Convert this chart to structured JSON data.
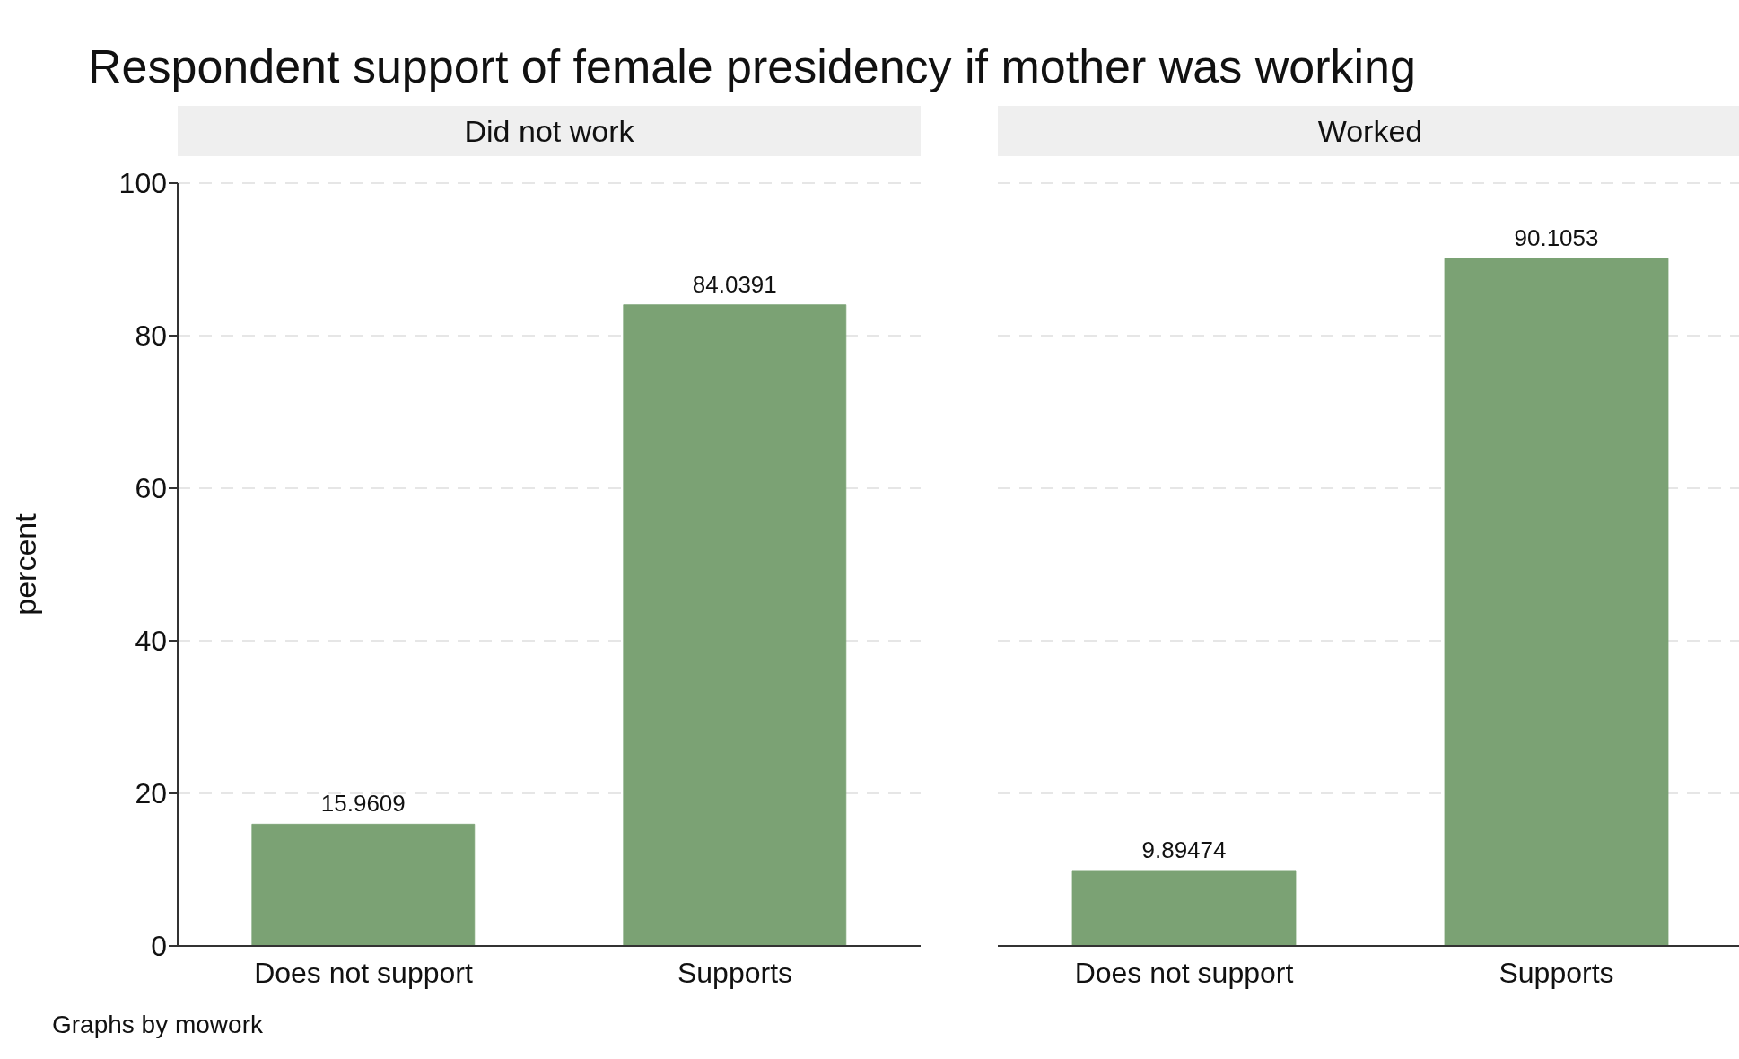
{
  "chart_data": [
    {
      "type": "bar",
      "title": "Respondent support of female presidency if mother was working",
      "subtitle": "Did not work",
      "ylabel": "percent",
      "categories": [
        "Does not support",
        "Supports"
      ],
      "values": [
        15.9609,
        84.0391
      ],
      "color": "#7ba274",
      "ylim": [
        0,
        100
      ],
      "yticks": [
        0,
        20,
        40,
        60,
        80,
        100
      ],
      "grid": "y",
      "data_labels": true,
      "annotations": [
        "Graphs by mowork"
      ]
    },
    {
      "type": "bar",
      "subtitle": "Worked",
      "categories": [
        "Does not support",
        "Supports"
      ],
      "values": [
        9.89474,
        90.1053
      ],
      "color": "#7ba274",
      "ylim": [
        0,
        100
      ],
      "yticks": [
        0,
        20,
        40,
        60,
        80,
        100
      ],
      "grid": "y",
      "data_labels": true,
      "tick_labels": "x"
    }
  ]
}
